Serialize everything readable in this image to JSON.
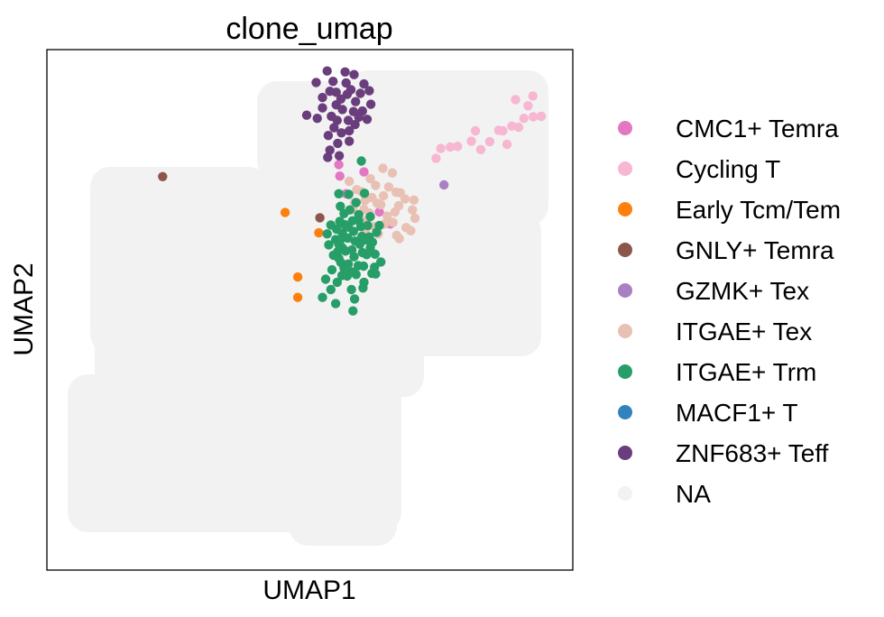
{
  "chart_data": {
    "type": "scatter",
    "title": "clone_umap",
    "xlabel": "UMAP1",
    "ylabel": "UMAP2",
    "xlim": [
      0,
      100
    ],
    "ylim": [
      0,
      100
    ],
    "ticks": false,
    "grid": false,
    "legend_position": "right",
    "background_color": "#f2f2f2",
    "series": [
      {
        "name": "CMC1+ Temra",
        "color": "#e377c2",
        "points": [
          [
            55.7,
            75.7
          ],
          [
            60.3,
            76.5
          ],
          [
            55.5,
            77.9
          ],
          [
            56.9,
            72.3
          ],
          [
            63.2,
            68.8
          ],
          [
            65.3,
            66.5
          ]
        ]
      },
      {
        "name": "Cycling T",
        "color": "#f7b6d2",
        "points": [
          [
            89.1,
            90.4
          ],
          [
            91.5,
            89.2
          ],
          [
            92.5,
            87.1
          ],
          [
            90.7,
            86.8
          ],
          [
            88.4,
            85.3
          ],
          [
            86.7,
            84.4
          ],
          [
            84.2,
            82.3
          ],
          [
            82.5,
            80.8
          ],
          [
            80.7,
            82.4
          ],
          [
            78.1,
            81.4
          ],
          [
            76.7,
            81.3
          ],
          [
            74.9,
            81.0
          ],
          [
            74.0,
            79.1
          ],
          [
            89.7,
            85.1
          ],
          [
            94.0,
            87.2
          ],
          [
            85.9,
            84.5
          ],
          [
            87.5,
            81.8
          ],
          [
            81.5,
            84.4
          ],
          [
            92.4,
            91.1
          ]
        ]
      },
      {
        "name": "Early Tcm/Tem",
        "color": "#ff7f0e",
        "points": [
          [
            45.3,
            68.7
          ],
          [
            51.7,
            64.8
          ],
          [
            47.7,
            56.3
          ],
          [
            47.7,
            52.4
          ]
        ]
      },
      {
        "name": "GNLY+ Temra",
        "color": "#8c564b",
        "points": [
          [
            22.0,
            75.6
          ],
          [
            51.9,
            67.7
          ]
        ]
      },
      {
        "name": "GZMK+ Tex",
        "color": "#aa80c4",
        "points": [
          [
            75.5,
            74.0
          ]
        ]
      },
      {
        "name": "ITGAE+ Tex",
        "color": "#e8c0b4",
        "points": [
          [
            57.5,
            74.7
          ],
          [
            62.8,
            70.5
          ],
          [
            64.7,
            68.0
          ],
          [
            66.9,
            70.0
          ],
          [
            68.1,
            71.3
          ],
          [
            69.5,
            69.2
          ],
          [
            70.0,
            67.6
          ],
          [
            69.2,
            65.2
          ],
          [
            66.5,
            64.3
          ],
          [
            65.8,
            66.8
          ],
          [
            66.4,
            72.6
          ],
          [
            65.0,
            73.6
          ],
          [
            62.5,
            73.9
          ],
          [
            61.5,
            75.2
          ],
          [
            65.7,
            76.3
          ],
          [
            63.9,
            77.2
          ],
          [
            59.8,
            72.7
          ],
          [
            60.5,
            71.0
          ],
          [
            58.5,
            70.6
          ],
          [
            62.3,
            66.0
          ],
          [
            60.8,
            67.2
          ],
          [
            67.0,
            63.7
          ],
          [
            68.3,
            65.8
          ],
          [
            63.5,
            70.2
          ],
          [
            61.3,
            68.6
          ],
          [
            64.2,
            66.5
          ],
          [
            66.2,
            68.8
          ],
          [
            61.8,
            71.6
          ],
          [
            60.3,
            69.3
          ],
          [
            64.0,
            71.9
          ],
          [
            58.9,
            73.1
          ],
          [
            67.2,
            72.5
          ],
          [
            69.8,
            71.1
          ],
          [
            60.6,
            65.4
          ],
          [
            58.2,
            69.3
          ],
          [
            63.0,
            64.6
          ]
        ]
      },
      {
        "name": "ITGAE+ Trm",
        "color": "#279e68",
        "points": [
          [
            59.8,
            78.6
          ],
          [
            55.5,
            72.3
          ],
          [
            55.8,
            69.9
          ],
          [
            56.5,
            68.5
          ],
          [
            55.1,
            65.5
          ],
          [
            55.5,
            62.6
          ],
          [
            54.5,
            60.5
          ],
          [
            55.9,
            59.1
          ],
          [
            56.5,
            58.0
          ],
          [
            58.0,
            57.3
          ],
          [
            59.2,
            58.5
          ],
          [
            60.8,
            60.6
          ],
          [
            61.5,
            61.9
          ],
          [
            62.4,
            60.7
          ],
          [
            63.5,
            59.2
          ],
          [
            61.8,
            57.0
          ],
          [
            60.3,
            55.3
          ],
          [
            57.9,
            53.9
          ],
          [
            58.5,
            52.1
          ],
          [
            54.0,
            53.9
          ],
          [
            53.0,
            55.9
          ],
          [
            55.2,
            55.3
          ],
          [
            59.5,
            62.6
          ],
          [
            57.2,
            63.8
          ],
          [
            58.3,
            65.1
          ],
          [
            58.1,
            67.1
          ],
          [
            59.3,
            68.3
          ],
          [
            61.0,
            66.2
          ],
          [
            59.9,
            64.1
          ],
          [
            56.8,
            61.3
          ],
          [
            58.4,
            60.2
          ],
          [
            60.0,
            61.0
          ],
          [
            61.9,
            63.0
          ],
          [
            62.7,
            64.9
          ],
          [
            56.2,
            64.7
          ],
          [
            57.6,
            69.2
          ],
          [
            58.8,
            70.6
          ],
          [
            60.4,
            72.4
          ],
          [
            55.7,
            67.0
          ],
          [
            54.0,
            66.3
          ],
          [
            53.6,
            62.5
          ],
          [
            57.3,
            65.9
          ],
          [
            58.6,
            63.2
          ],
          [
            60.8,
            63.4
          ],
          [
            56.6,
            66.4
          ],
          [
            59.7,
            66.0
          ],
          [
            61.3,
            64.0
          ],
          [
            62.3,
            58.2
          ],
          [
            54.2,
            57.7
          ],
          [
            57.1,
            56.5
          ],
          [
            55.8,
            63.4
          ],
          [
            57.3,
            58.8
          ],
          [
            58.8,
            56.8
          ],
          [
            60.2,
            58.4
          ],
          [
            53.3,
            64.6
          ],
          [
            63.2,
            66.2
          ],
          [
            58.0,
            61.5
          ],
          [
            54.9,
            63.5
          ],
          [
            55.3,
            61.2
          ],
          [
            62.5,
            56.9
          ],
          [
            54.9,
            51.2
          ],
          [
            60.1,
            54.2
          ],
          [
            55.5,
            59.9
          ],
          [
            56.2,
            61.9
          ],
          [
            52.4,
            52.4
          ],
          [
            58.2,
            49.8
          ],
          [
            57.4,
            72.2
          ],
          [
            56.1,
            56.6
          ],
          [
            59.3,
            67.1
          ],
          [
            61.5,
            67.9
          ]
        ]
      },
      {
        "name": "MACF1+ T",
        "color": "#3182bd",
        "points": []
      },
      {
        "name": "ZNF683+ Teff",
        "color": "#6a3d7d",
        "points": [
          [
            53.3,
            95.9
          ],
          [
            58.4,
            95.2
          ],
          [
            60.3,
            93.4
          ],
          [
            59.6,
            91.6
          ],
          [
            57.1,
            91.4
          ],
          [
            55.9,
            90.5
          ],
          [
            53.8,
            92.0
          ],
          [
            52.4,
            90.8
          ],
          [
            51.2,
            93.7
          ],
          [
            56.2,
            88.5
          ],
          [
            58.3,
            88.1
          ],
          [
            60.0,
            88.2
          ],
          [
            60.9,
            86.6
          ],
          [
            58.6,
            85.6
          ],
          [
            57.5,
            84.4
          ],
          [
            56.0,
            84.0
          ],
          [
            54.6,
            85.0
          ],
          [
            53.5,
            83.5
          ],
          [
            55.3,
            82.0
          ],
          [
            57.5,
            82.4
          ],
          [
            53.8,
            80.7
          ],
          [
            53.4,
            79.3
          ],
          [
            55.6,
            79.6
          ],
          [
            49.4,
            87.4
          ],
          [
            51.4,
            86.8
          ],
          [
            54.1,
            87.2
          ],
          [
            57.8,
            92.3
          ],
          [
            56.9,
            93.6
          ],
          [
            54.4,
            93.9
          ],
          [
            61.3,
            92.1
          ],
          [
            61.6,
            89.5
          ],
          [
            58.7,
            90.0
          ],
          [
            55.2,
            86.4
          ],
          [
            52.4,
            88.8
          ],
          [
            55.0,
            91.8
          ],
          [
            56.7,
            95.7
          ],
          [
            59.3,
            87.0
          ],
          [
            57.3,
            86.4
          ],
          [
            55.0,
            89.4
          ]
        ]
      }
    ],
    "background": {
      "name": "NA",
      "color": "#f2f2f2"
    }
  }
}
